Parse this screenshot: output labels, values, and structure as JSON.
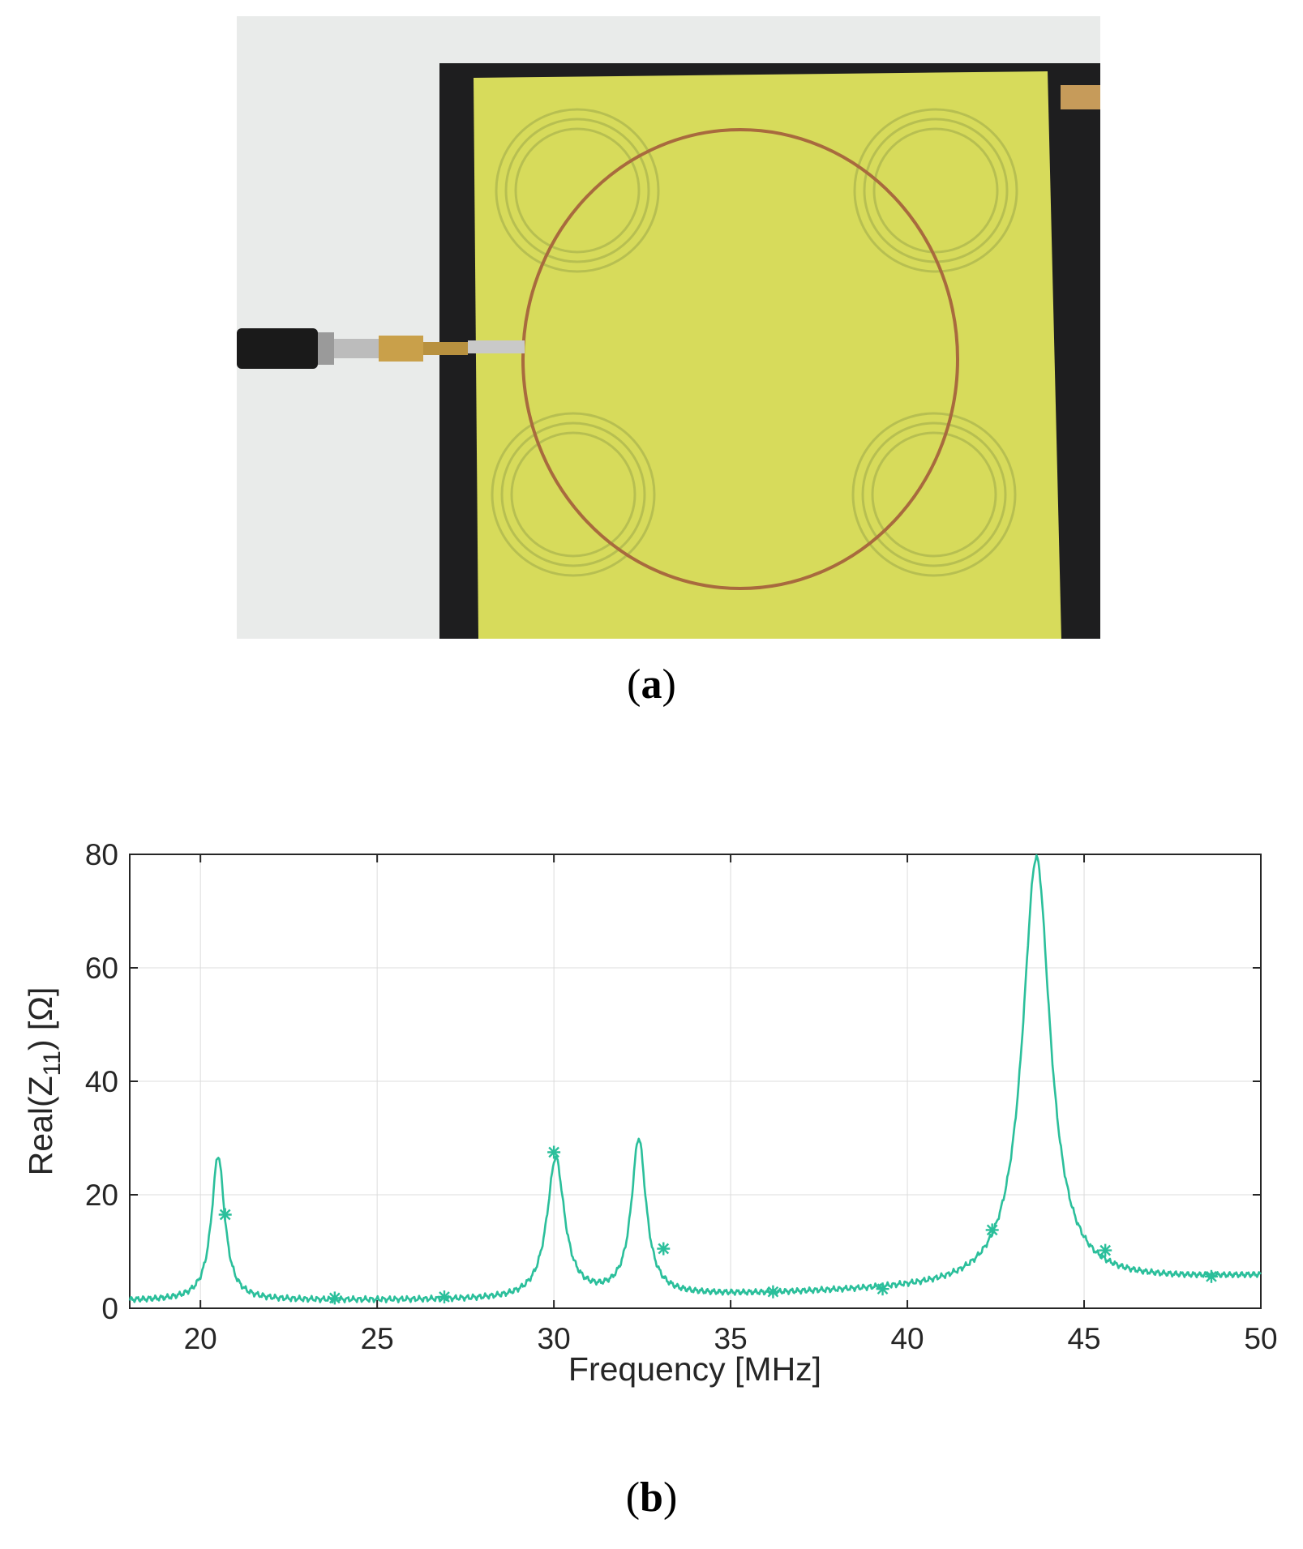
{
  "figure": {
    "panel_a": {
      "caption_letter": "a",
      "photo": "photo of a circular copper wire loop antenna on a yellow-green FR4 board with an SMA coaxial connector"
    },
    "panel_b": {
      "caption_letter": "b"
    }
  },
  "colors": {
    "series": "#2bbf9b",
    "grid": "#dcdcdc",
    "axis": "#262626",
    "board": "#d8dc5a",
    "wire": "#a86a3e",
    "backing": "#222222"
  },
  "chart_data": {
    "type": "line",
    "xlabel": "Frequency [MHz]",
    "ylabel_main": "Real(Z",
    "ylabel_sub": "11",
    "ylabel_tail": ") [Ω]",
    "xlim": [
      18,
      50
    ],
    "ylim": [
      0,
      80
    ],
    "xticks": [
      20,
      25,
      30,
      35,
      40,
      45,
      50
    ],
    "yticks": [
      0,
      20,
      40,
      60,
      80
    ],
    "grid": true,
    "marker": "asterisk",
    "peaks": [
      {
        "f": 20.5,
        "h": 25.5,
        "g": 0.45
      },
      {
        "f": 30.05,
        "h": 24.5,
        "g": 0.6
      },
      {
        "f": 32.4,
        "h": 27.5,
        "g": 0.5
      },
      {
        "f": 43.65,
        "h": 75.5,
        "g": 0.95
      }
    ],
    "markers": [
      {
        "x": 20.7,
        "y": 16.5
      },
      {
        "x": 23.8,
        "y": 1.8
      },
      {
        "x": 26.9,
        "y": 2.0
      },
      {
        "x": 30.0,
        "y": 27.5
      },
      {
        "x": 33.1,
        "y": 10.5
      },
      {
        "x": 36.2,
        "y": 2.9
      },
      {
        "x": 39.3,
        "y": 3.4
      },
      {
        "x": 42.4,
        "y": 13.8
      },
      {
        "x": 45.6,
        "y": 10.2
      },
      {
        "x": 48.6,
        "y": 5.6
      }
    ]
  }
}
